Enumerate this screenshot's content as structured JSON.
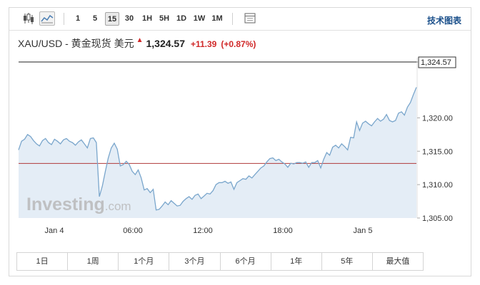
{
  "toolbar": {
    "chart_type_icons": [
      "candlestick-icon",
      "line-chart-icon"
    ],
    "intervals": [
      "1",
      "5",
      "15",
      "30",
      "1H",
      "5H",
      "1D",
      "1W",
      "1M"
    ],
    "active_interval": "15",
    "settings_icon": "table-icon",
    "technical_link": "技术图表"
  },
  "quote": {
    "name": "XAU/USD - 黄金现货 美元",
    "last": "1,324.57",
    "change": "+11.39",
    "change_pct": "(+0.87%)"
  },
  "watermark": {
    "brand": "Investing",
    "suffix": ".com"
  },
  "ranges": [
    "1日",
    "1周",
    "1个月",
    "3个月",
    "6个月",
    "1年",
    "5年",
    "最大值"
  ],
  "colors": {
    "line": "#7aa6cc",
    "area": "#e4edf6",
    "negative": "#d02828",
    "ref_line": "#b03a3a"
  },
  "chart_data": {
    "type": "area",
    "x_ticks": [
      "Jan 4",
      "06:00",
      "12:00",
      "18:00",
      "Jan 5"
    ],
    "y_ticks": [
      "1,305.00",
      "1,310.00",
      "1,315.00",
      "1,320.00"
    ],
    "ylim": [
      1305,
      1329
    ],
    "last_label": "1,324.57",
    "last_value": 1324.57,
    "reference_value": 1313.18,
    "grid": false,
    "values": [
      1315.2,
      1316.5,
      1316.8,
      1317.5,
      1317.2,
      1316.6,
      1316.1,
      1315.8,
      1316.6,
      1316.9,
      1316.3,
      1316.0,
      1316.8,
      1316.5,
      1316.1,
      1316.7,
      1316.9,
      1316.5,
      1316.3,
      1315.9,
      1316.4,
      1316.7,
      1316.1,
      1315.5,
      1316.9,
      1317.0,
      1316.3,
      1308.2,
      1309.8,
      1312.0,
      1314.0,
      1315.5,
      1316.2,
      1315.3,
      1312.8,
      1313.0,
      1313.5,
      1313.0,
      1312.0,
      1311.5,
      1312.2,
      1311.0,
      1309.2,
      1309.4,
      1308.8,
      1309.3,
      1306.2,
      1306.3,
      1306.8,
      1307.4,
      1307.0,
      1307.6,
      1307.2,
      1306.8,
      1306.9,
      1307.5,
      1307.9,
      1308.2,
      1307.8,
      1308.4,
      1308.6,
      1307.9,
      1308.3,
      1308.7,
      1308.6,
      1309.1,
      1310.0,
      1310.3,
      1310.3,
      1310.5,
      1310.2,
      1310.4,
      1309.3,
      1310.3,
      1310.6,
      1310.9,
      1310.8,
      1311.3,
      1311.0,
      1311.5,
      1312.0,
      1312.5,
      1312.8,
      1313.4,
      1313.9,
      1314.0,
      1313.6,
      1313.8,
      1313.4,
      1313.1,
      1312.6,
      1313.2,
      1313.1,
      1313.3,
      1313.3,
      1313.2,
      1313.4,
      1312.6,
      1313.3,
      1313.3,
      1313.6,
      1312.5,
      1313.8,
      1314.8,
      1314.4,
      1315.6,
      1315.9,
      1315.5,
      1316.1,
      1315.7,
      1315.2,
      1317.1,
      1317.0,
      1319.4,
      1318.1,
      1319.2,
      1319.5,
      1319.1,
      1318.8,
      1319.4,
      1319.9,
      1319.5,
      1319.8,
      1320.5,
      1319.6,
      1319.4,
      1319.6,
      1320.7,
      1320.9,
      1320.4,
      1321.6,
      1322.3,
      1323.5,
      1324.57
    ]
  }
}
